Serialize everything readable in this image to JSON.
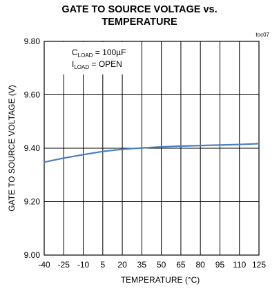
{
  "chart_data": {
    "type": "line",
    "title_line1": "GATE TO SOURCE VOLTAGE vs.",
    "title_line2": "TEMPERATURE",
    "tag": "toc07",
    "xlabel": "TEMPERATURE (°C)",
    "ylabel": "GATE TO SOURCE VOLTAGE (V)",
    "xlim": [
      -40,
      125
    ],
    "ylim": [
      9.0,
      9.8
    ],
    "x_ticks": [
      -40,
      -25,
      -10,
      5,
      20,
      35,
      50,
      65,
      80,
      95,
      110,
      125
    ],
    "y_ticks": [
      "9.00",
      "9.20",
      "9.40",
      "9.60",
      "9.80"
    ],
    "grid": true,
    "annotations": {
      "cload": {
        "main": "C",
        "sub": "LOAD",
        "rest": " = 100µF"
      },
      "iload": {
        "main": "I",
        "sub": "LOAD",
        "rest": " = OPEN"
      }
    },
    "series": [
      {
        "color": "#4a7ebf",
        "x": [
          -40,
          -25,
          -10,
          5,
          20,
          35,
          50,
          65,
          80,
          95,
          110,
          125
        ],
        "y": [
          9.348,
          9.363,
          9.376,
          9.388,
          9.396,
          9.401,
          9.405,
          9.408,
          9.41,
          9.412,
          9.414,
          9.417
        ]
      }
    ]
  }
}
